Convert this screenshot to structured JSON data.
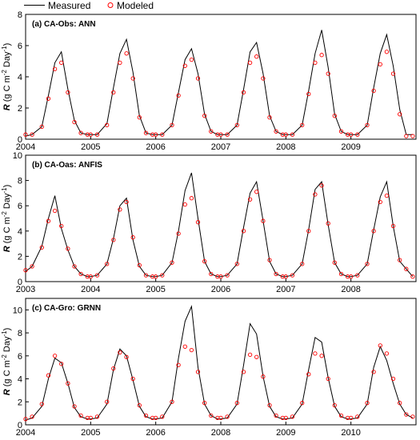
{
  "legend": {
    "measured_label": "Measured",
    "modeled_label": "Modeled",
    "position": "top-left, above panel (a)"
  },
  "colors": {
    "measured": "#000000",
    "modeled": "#ff0000",
    "axes": "#000000",
    "background": "#ffffff"
  },
  "chart_data": [
    {
      "type": "line",
      "title": "(a) CA-Obs: ANN",
      "xlabel": "",
      "ylabel": "R (g C m⁻² Day⁻¹)",
      "ylabel_parts": {
        "symbol": "R",
        "unit_start": "(g C m",
        "exp1": "-2",
        "mid": " Day",
        "exp2": "-1",
        "end": ")"
      },
      "x_ticks": [
        "2004",
        "2005",
        "2006",
        "2007",
        "2008",
        "2009"
      ],
      "x_range": [
        2004.0,
        2010.0
      ],
      "y_ticks": [
        "0",
        "2",
        "4",
        "6",
        "8"
      ],
      "ylim": [
        0,
        8
      ],
      "grid": false,
      "series": [
        {
          "name": "Measured",
          "style": "line",
          "x": [
            2004.0,
            2004.1,
            2004.25,
            2004.35,
            2004.45,
            2004.55,
            2004.65,
            2004.75,
            2004.85,
            2004.95,
            2005.0,
            2005.1,
            2005.25,
            2005.35,
            2005.45,
            2005.55,
            2005.65,
            2005.75,
            2005.85,
            2005.95,
            2006.0,
            2006.1,
            2006.25,
            2006.35,
            2006.45,
            2006.55,
            2006.65,
            2006.75,
            2006.85,
            2006.95,
            2007.0,
            2007.1,
            2007.25,
            2007.35,
            2007.45,
            2007.55,
            2007.65,
            2007.75,
            2007.85,
            2007.95,
            2008.0,
            2008.1,
            2008.25,
            2008.35,
            2008.45,
            2008.55,
            2008.65,
            2008.75,
            2008.85,
            2008.95,
            2009.0,
            2009.1,
            2009.25,
            2009.35,
            2009.45,
            2009.55,
            2009.65,
            2009.75,
            2009.85,
            2009.95
          ],
          "y": [
            0.2,
            0.3,
            0.8,
            2.8,
            4.9,
            5.6,
            3.2,
            1.2,
            0.4,
            0.3,
            0.3,
            0.3,
            1.0,
            3.3,
            5.5,
            6.4,
            4.3,
            1.5,
            0.4,
            0.3,
            0.3,
            0.3,
            0.9,
            3.0,
            5.1,
            5.8,
            4.2,
            1.6,
            0.5,
            0.3,
            0.3,
            0.3,
            0.9,
            3.2,
            5.6,
            6.2,
            4.2,
            1.5,
            0.5,
            0.3,
            0.3,
            0.3,
            0.9,
            3.1,
            5.5,
            7.0,
            4.6,
            1.6,
            0.5,
            0.3,
            0.3,
            0.3,
            0.9,
            3.3,
            5.5,
            6.7,
            4.7,
            1.9,
            0.3,
            0.3
          ]
        },
        {
          "name": "Modeled",
          "style": "markers-open-circle",
          "x": [
            2004.0,
            2004.1,
            2004.25,
            2004.35,
            2004.45,
            2004.55,
            2004.65,
            2004.75,
            2004.85,
            2004.95,
            2005.0,
            2005.1,
            2005.25,
            2005.35,
            2005.45,
            2005.55,
            2005.65,
            2005.75,
            2005.85,
            2005.95,
            2006.0,
            2006.1,
            2006.25,
            2006.35,
            2006.45,
            2006.55,
            2006.65,
            2006.75,
            2006.85,
            2006.95,
            2007.0,
            2007.1,
            2007.25,
            2007.35,
            2007.45,
            2007.55,
            2007.65,
            2007.75,
            2007.85,
            2007.95,
            2008.0,
            2008.1,
            2008.25,
            2008.35,
            2008.45,
            2008.55,
            2008.65,
            2008.75,
            2008.85,
            2008.95,
            2009.0,
            2009.1,
            2009.25,
            2009.35,
            2009.45,
            2009.55,
            2009.65,
            2009.75,
            2009.85,
            2009.95
          ],
          "y": [
            0.3,
            0.3,
            0.8,
            2.6,
            4.5,
            4.9,
            3.0,
            1.1,
            0.4,
            0.3,
            0.3,
            0.3,
            0.9,
            3.0,
            4.9,
            5.5,
            3.9,
            1.4,
            0.4,
            0.3,
            0.3,
            0.3,
            0.9,
            2.8,
            4.7,
            5.1,
            3.9,
            1.5,
            0.5,
            0.3,
            0.3,
            0.3,
            0.9,
            3.0,
            4.9,
            5.3,
            3.9,
            1.4,
            0.5,
            0.3,
            0.3,
            0.3,
            0.9,
            2.9,
            4.9,
            5.4,
            4.2,
            1.5,
            0.5,
            0.3,
            0.3,
            0.3,
            0.9,
            3.1,
            4.8,
            5.6,
            4.2,
            1.6,
            0.2,
            0.2
          ]
        }
      ]
    },
    {
      "type": "line",
      "title": "(b) CA-Oas: ANFIS",
      "xlabel": "",
      "ylabel": "R (g C m⁻² Day⁻¹)",
      "ylabel_parts": {
        "symbol": "R",
        "unit_start": "(g C m",
        "exp1": "-2",
        "mid": " Day",
        "exp2": "-1",
        "end": ")"
      },
      "x_ticks": [
        "2003",
        "2004",
        "2005",
        "2006",
        "2007",
        "2008"
      ],
      "x_range": [
        2003.0,
        2009.0
      ],
      "y_ticks": [
        "0",
        "2",
        "4",
        "6",
        "8",
        "10"
      ],
      "ylim": [
        0,
        10
      ],
      "grid": false,
      "series": [
        {
          "name": "Measured",
          "style": "line",
          "x": [
            2003.0,
            2003.1,
            2003.25,
            2003.35,
            2003.45,
            2003.55,
            2003.65,
            2003.75,
            2003.85,
            2003.95,
            2004.0,
            2004.1,
            2004.25,
            2004.35,
            2004.45,
            2004.55,
            2004.65,
            2004.75,
            2004.85,
            2004.95,
            2005.0,
            2005.1,
            2005.25,
            2005.35,
            2005.45,
            2005.55,
            2005.65,
            2005.75,
            2005.85,
            2005.95,
            2006.0,
            2006.1,
            2006.25,
            2006.35,
            2006.45,
            2006.55,
            2006.65,
            2006.75,
            2006.85,
            2006.95,
            2007.0,
            2007.1,
            2007.25,
            2007.35,
            2007.45,
            2007.55,
            2007.65,
            2007.75,
            2007.85,
            2007.95,
            2008.0,
            2008.1,
            2008.25,
            2008.35,
            2008.45,
            2008.55,
            2008.65,
            2008.75,
            2008.85,
            2008.95
          ],
          "y": [
            0.8,
            1.2,
            2.8,
            5.0,
            6.8,
            4.2,
            2.5,
            1.2,
            0.6,
            0.4,
            0.4,
            0.5,
            1.4,
            3.4,
            6.0,
            6.6,
            3.3,
            1.2,
            0.5,
            0.4,
            0.4,
            0.5,
            1.5,
            4.0,
            7.2,
            8.6,
            5.0,
            1.6,
            0.6,
            0.4,
            0.4,
            0.5,
            1.4,
            4.3,
            7.0,
            7.9,
            4.8,
            1.6,
            0.6,
            0.4,
            0.4,
            0.5,
            1.4,
            4.1,
            7.3,
            7.9,
            4.5,
            1.5,
            0.6,
            0.4,
            0.4,
            0.5,
            1.4,
            4.1,
            6.7,
            7.9,
            4.4,
            1.6,
            1.0,
            0.4
          ]
        },
        {
          "name": "Modeled",
          "style": "markers-open-circle",
          "x": [
            2003.0,
            2003.1,
            2003.25,
            2003.35,
            2003.45,
            2003.55,
            2003.65,
            2003.75,
            2003.85,
            2003.95,
            2004.0,
            2004.1,
            2004.25,
            2004.35,
            2004.45,
            2004.55,
            2004.65,
            2004.75,
            2004.85,
            2004.95,
            2005.0,
            2005.1,
            2005.25,
            2005.35,
            2005.45,
            2005.55,
            2005.65,
            2005.75,
            2005.85,
            2005.95,
            2006.0,
            2006.1,
            2006.25,
            2006.35,
            2006.45,
            2006.55,
            2006.65,
            2006.75,
            2006.85,
            2006.95,
            2007.0,
            2007.1,
            2007.25,
            2007.35,
            2007.45,
            2007.55,
            2007.65,
            2007.75,
            2007.85,
            2007.95,
            2008.0,
            2008.1,
            2008.25,
            2008.35,
            2008.45,
            2008.55,
            2008.65,
            2008.75,
            2008.85,
            2008.95
          ],
          "y": [
            0.9,
            1.2,
            2.7,
            4.8,
            5.6,
            4.4,
            2.6,
            1.2,
            0.6,
            0.4,
            0.4,
            0.5,
            1.4,
            3.3,
            5.7,
            6.3,
            3.5,
            1.3,
            0.5,
            0.4,
            0.4,
            0.5,
            1.5,
            3.8,
            6.1,
            6.6,
            4.7,
            1.6,
            0.6,
            0.4,
            0.4,
            0.5,
            1.4,
            4.0,
            6.5,
            7.1,
            4.8,
            1.7,
            0.6,
            0.4,
            0.4,
            0.5,
            1.4,
            4.0,
            6.9,
            7.6,
            4.6,
            1.5,
            0.6,
            0.4,
            0.4,
            0.5,
            1.4,
            4.0,
            6.3,
            6.8,
            4.4,
            1.7,
            1.0,
            0.4
          ]
        }
      ]
    },
    {
      "type": "line",
      "title": "(c) CA-Gro: GRNN",
      "xlabel": "",
      "ylabel": "R (g C m⁻² Day⁻¹)",
      "ylabel_parts": {
        "symbol": "R",
        "unit_start": "(g C m",
        "exp1": "-2",
        "mid": " Day",
        "exp2": "-1",
        "end": ")"
      },
      "x_ticks": [
        "2004",
        "2005",
        "2006",
        "2008",
        "2009",
        "2010"
      ],
      "x_range": [
        2004.0,
        2010.0
      ],
      "y_ticks": [
        "0",
        "2",
        "4",
        "6",
        "8",
        "10"
      ],
      "ylim": [
        0,
        11
      ],
      "grid": false,
      "series": [
        {
          "name": "Measured",
          "style": "line",
          "x": [
            2004.0,
            2004.1,
            2004.25,
            2004.35,
            2004.45,
            2004.55,
            2004.65,
            2004.75,
            2004.85,
            2004.95,
            2005.0,
            2005.1,
            2005.25,
            2005.35,
            2005.45,
            2005.55,
            2005.65,
            2005.75,
            2005.85,
            2005.95,
            2006.0,
            2006.1,
            2006.25,
            2006.35,
            2006.45,
            2006.55,
            2006.65,
            2006.75,
            2006.85,
            2006.95,
            2007.0,
            2007.1,
            2007.25,
            2007.35,
            2007.45,
            2007.55,
            2007.65,
            2007.75,
            2007.85,
            2007.95,
            2008.0,
            2008.1,
            2008.25,
            2008.35,
            2008.45,
            2008.55,
            2008.65,
            2008.75,
            2008.85,
            2008.95,
            2009.0,
            2009.1,
            2009.25,
            2009.35,
            2009.45,
            2009.55,
            2009.65,
            2009.75,
            2009.85,
            2009.95
          ],
          "y": [
            0.4,
            0.6,
            1.6,
            4.0,
            5.8,
            5.4,
            3.6,
            1.5,
            0.7,
            0.5,
            0.5,
            0.6,
            1.8,
            4.8,
            6.6,
            6.0,
            3.9,
            1.6,
            0.7,
            0.5,
            0.5,
            0.6,
            2.0,
            5.8,
            9.0,
            10.3,
            5.0,
            1.8,
            0.8,
            0.5,
            0.5,
            0.6,
            1.8,
            5.2,
            8.8,
            7.9,
            4.2,
            1.6,
            0.7,
            0.5,
            0.5,
            0.6,
            1.8,
            4.8,
            7.6,
            7.2,
            4.1,
            1.6,
            0.7,
            0.5,
            0.5,
            0.6,
            1.8,
            5.0,
            6.8,
            5.6,
            3.6,
            1.8,
            0.9,
            0.6
          ]
        },
        {
          "name": "Modeled",
          "style": "markers-open-circle",
          "x": [
            2004.0,
            2004.1,
            2004.25,
            2004.35,
            2004.45,
            2004.55,
            2004.65,
            2004.75,
            2004.85,
            2004.95,
            2005.0,
            2005.1,
            2005.25,
            2005.35,
            2005.45,
            2005.55,
            2005.65,
            2005.75,
            2005.85,
            2005.95,
            2006.0,
            2006.1,
            2006.25,
            2006.35,
            2006.45,
            2006.55,
            2006.65,
            2006.75,
            2006.85,
            2006.95,
            2007.0,
            2007.1,
            2007.25,
            2007.35,
            2007.45,
            2007.55,
            2007.65,
            2007.75,
            2007.85,
            2007.95,
            2008.0,
            2008.1,
            2008.25,
            2008.35,
            2008.45,
            2008.55,
            2008.65,
            2008.75,
            2008.85,
            2008.95,
            2009.0,
            2009.1,
            2009.25,
            2009.35,
            2009.45,
            2009.55,
            2009.65,
            2009.75,
            2009.85,
            2009.95
          ],
          "y": [
            0.5,
            0.7,
            1.8,
            4.3,
            6.0,
            5.3,
            3.6,
            1.6,
            0.8,
            0.6,
            0.6,
            0.7,
            2.0,
            4.9,
            6.3,
            5.9,
            4.0,
            1.7,
            0.8,
            0.6,
            0.6,
            0.7,
            2.0,
            5.2,
            6.8,
            6.5,
            4.6,
            1.9,
            0.8,
            0.6,
            0.6,
            0.7,
            1.9,
            4.6,
            6.1,
            5.9,
            4.2,
            1.7,
            0.8,
            0.6,
            0.6,
            0.7,
            1.9,
            4.4,
            6.2,
            6.0,
            4.0,
            1.7,
            0.8,
            0.6,
            0.6,
            0.7,
            1.9,
            4.6,
            6.9,
            6.2,
            4.0,
            1.9,
            0.9,
            0.7
          ]
        }
      ]
    }
  ]
}
